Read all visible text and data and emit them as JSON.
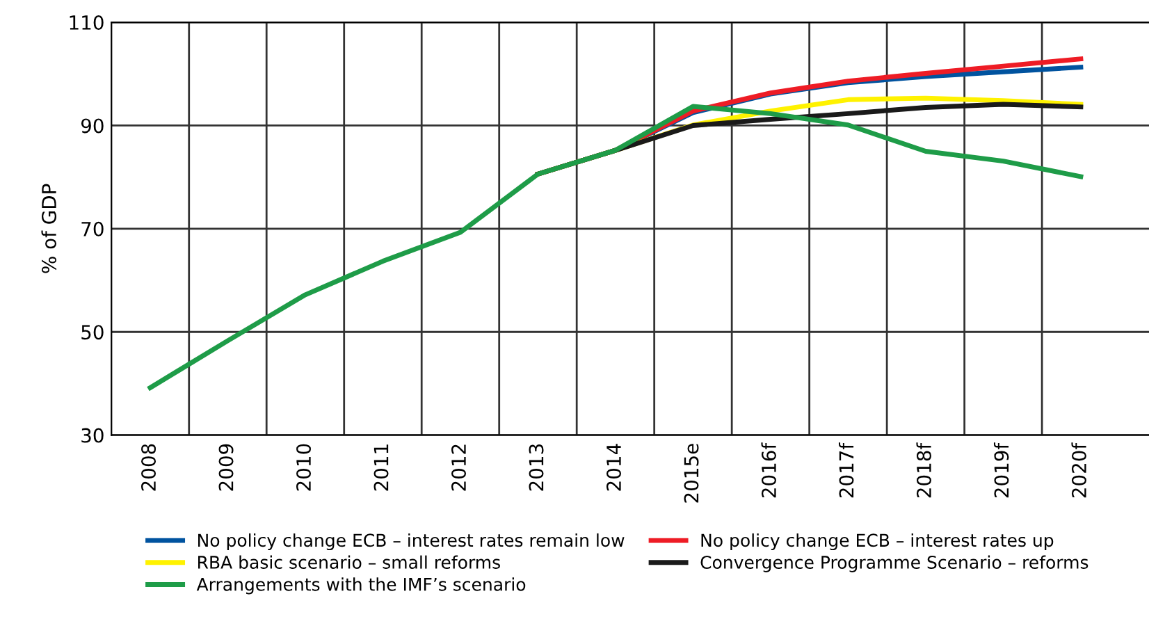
{
  "chart_data": {
    "type": "line",
    "ylabel": "% of GDP",
    "categories": [
      "2008",
      "2009",
      "2010",
      "2011",
      "2012",
      "2013",
      "2014",
      "2015e",
      "2016f",
      "2017f",
      "2018f",
      "2019f",
      "2020f"
    ],
    "ylim": [
      30,
      110
    ],
    "yticks": [
      30,
      50,
      70,
      90,
      110
    ],
    "grid": true,
    "legend": "bottom",
    "marker": "none",
    "line_style": "solid",
    "series": [
      {
        "name": "No policy change ECB – interest rates remain low",
        "color": "#00539f",
        "values": [
          null,
          null,
          null,
          null,
          null,
          80.6,
          85.2,
          92.5,
          96.1,
          98.3,
          99.5,
          100.4,
          101.3
        ]
      },
      {
        "name": "No policy change ECB – interest rates up",
        "color": "#ee1c25",
        "values": [
          null,
          null,
          null,
          null,
          null,
          80.6,
          85.2,
          92.8,
          96.3,
          98.6,
          100.1,
          101.5,
          102.9
        ]
      },
      {
        "name": "RBA basic scenario – small reforms",
        "color": "#fff200",
        "values": [
          null,
          null,
          null,
          null,
          null,
          80.6,
          85.2,
          90.1,
          92.8,
          95.0,
          95.3,
          94.8,
          94.1
        ]
      },
      {
        "name": "Convergence Programme Scenario – reforms",
        "color": "#1a1a1a",
        "values": [
          null,
          null,
          null,
          null,
          null,
          80.6,
          85.2,
          90.0,
          91.2,
          92.3,
          93.5,
          94.1,
          93.6
        ]
      },
      {
        "name": "Arrangements with the IMF’s scenario",
        "color": "#1e9c48",
        "values": [
          39.2,
          48.3,
          57.2,
          63.7,
          69.3,
          80.6,
          85.2,
          93.7,
          92.3,
          90.1,
          85.0,
          83.1,
          80.1
        ]
      }
    ]
  }
}
